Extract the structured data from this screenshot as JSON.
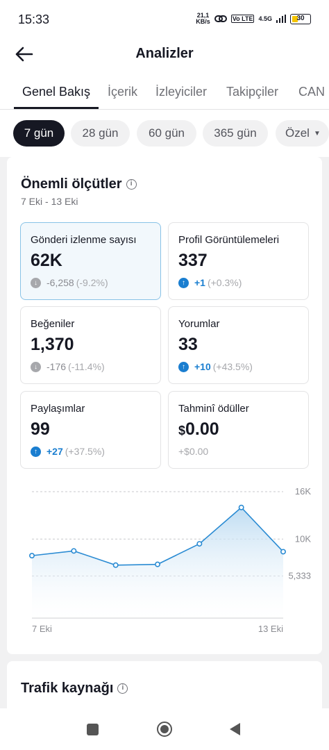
{
  "status_bar": {
    "time": "15:33",
    "net_speed_top": "21,1",
    "net_speed_bottom": "KB/s",
    "network": "4.5G",
    "lte": "Vo LTE",
    "battery": "30"
  },
  "header": {
    "title": "Analizler"
  },
  "tabs": [
    "Genel Bakış",
    "İçerik",
    "İzleyiciler",
    "Takipçiler",
    "CAN"
  ],
  "date_chips": [
    "7 gün",
    "28 gün",
    "60 gün",
    "365 gün",
    "Özel"
  ],
  "key_metrics": {
    "title": "Önemli ölçütler",
    "date_range": "7 Eki - 13 Eki",
    "items": [
      {
        "label": "Gönderi izlenme sayısı",
        "value": "62K",
        "delta": "-6,258",
        "pct": "(-9.2%)",
        "direction": "down"
      },
      {
        "label": "Profil Görüntülemeleri",
        "value": "337",
        "delta": "+1",
        "pct": "(+0.3%)",
        "direction": "up"
      },
      {
        "label": "Beğeniler",
        "value": "1,370",
        "delta": "-176",
        "pct": "(-11.4%)",
        "direction": "down"
      },
      {
        "label": "Yorumlar",
        "value": "33",
        "delta": "+10",
        "pct": "(+43.5%)",
        "direction": "up"
      },
      {
        "label": "Paylaşımlar",
        "value": "99",
        "delta": "+27",
        "pct": "(+37.5%)",
        "direction": "up"
      },
      {
        "label": "Tahminî ödüller",
        "value_prefix": "$",
        "value": "0.00",
        "delta": "+$0.00",
        "pct": "",
        "direction": "none"
      }
    ]
  },
  "chart_data": {
    "type": "area",
    "x": [
      "7 Eki",
      "8 Eki",
      "9 Eki",
      "10 Eki",
      "11 Eki",
      "12 Eki",
      "13 Eki"
    ],
    "x_tick_labels": [
      "7 Eki",
      "13 Eki"
    ],
    "y_tick_labels": [
      "16K",
      "10K",
      "5,333"
    ],
    "y_ticks": [
      16000,
      10000,
      5333
    ],
    "ylim": [
      0,
      16000
    ],
    "values": [
      7900,
      8500,
      6700,
      6800,
      9400,
      14000,
      8400
    ],
    "color": "#2a8bd3",
    "grid": true
  },
  "traffic": {
    "title": "Trafik kaynağı"
  }
}
